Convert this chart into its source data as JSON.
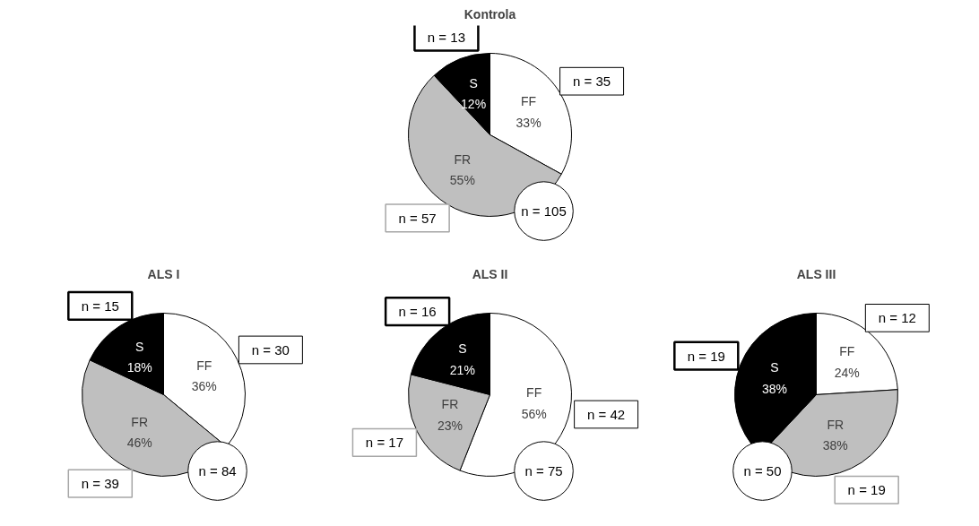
{
  "chart_data": [
    {
      "type": "pie",
      "title": "Kontrola",
      "categories": [
        "FF",
        "FR",
        "S"
      ],
      "values": [
        33,
        55,
        12
      ],
      "colors": [
        "#ffffff",
        "#bfbfbf",
        "#000000"
      ],
      "value_labels": [
        "33%",
        "55%",
        "12%"
      ],
      "annotations": [
        "n = 35",
        "n = 57",
        "n = 13",
        "n = 105"
      ]
    },
    {
      "type": "pie",
      "title": "ALS I",
      "categories": [
        "FF",
        "FR",
        "S"
      ],
      "values": [
        36,
        46,
        18
      ],
      "colors": [
        "#ffffff",
        "#bfbfbf",
        "#000000"
      ],
      "value_labels": [
        "36%",
        "46%",
        "18%"
      ],
      "annotations": [
        "n = 30",
        "n = 39",
        "n = 15",
        "n = 84"
      ]
    },
    {
      "type": "pie",
      "title": "ALS II",
      "categories": [
        "FF",
        "FR",
        "S"
      ],
      "values": [
        56,
        23,
        21
      ],
      "colors": [
        "#ffffff",
        "#bfbfbf",
        "#000000"
      ],
      "value_labels": [
        "56%",
        "23%",
        "21%"
      ],
      "annotations": [
        "n = 42",
        "n = 17",
        "n = 16",
        "n = 75"
      ]
    },
    {
      "type": "pie",
      "title": "ALS III",
      "categories": [
        "FF",
        "FR",
        "S"
      ],
      "values": [
        24,
        38,
        38
      ],
      "colors": [
        "#ffffff",
        "#bfbfbf",
        "#000000"
      ],
      "value_labels": [
        "24%",
        "38%",
        "38%"
      ],
      "annotations": [
        "n = 12",
        "n = 19",
        "n = 19",
        "n = 50"
      ]
    }
  ]
}
